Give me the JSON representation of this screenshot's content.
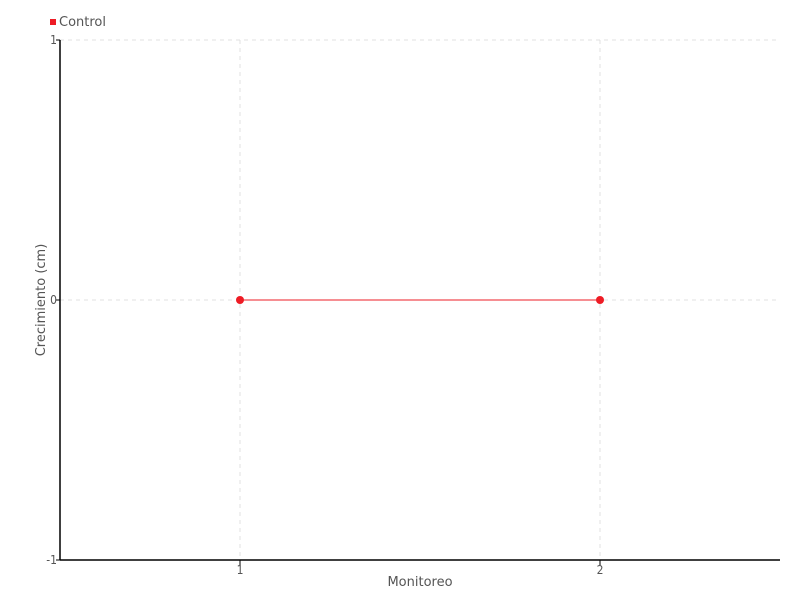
{
  "chart_data": {
    "type": "line",
    "title": "",
    "xlabel": "Monitoreo",
    "ylabel": "Crecimiento (cm)",
    "x": [
      1,
      2
    ],
    "x_ticks": [
      "1",
      "2"
    ],
    "xlim": [
      0.5,
      2.5
    ],
    "ylim": [
      -1,
      1
    ],
    "y_ticks": [
      "1",
      "0",
      "-1"
    ],
    "grid": true,
    "legend_position": "top-left",
    "series": [
      {
        "name": "Control",
        "values": [
          0,
          0
        ],
        "color": "#ee1c25"
      }
    ]
  }
}
